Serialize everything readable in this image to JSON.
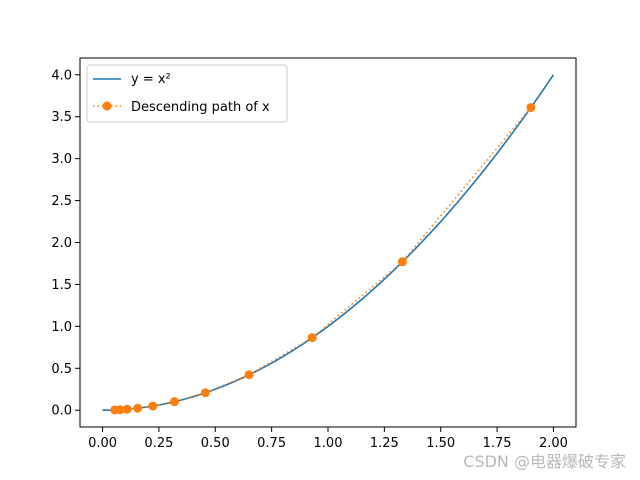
{
  "chart_data": {
    "type": "line",
    "title": "",
    "xlabel": "",
    "ylabel": "",
    "xlim": [
      -0.1,
      2.1
    ],
    "ylim": [
      -0.2,
      4.2
    ],
    "xticks": [
      "0.00",
      "0.25",
      "0.50",
      "0.75",
      "1.00",
      "1.25",
      "1.50",
      "1.75",
      "2.00"
    ],
    "yticks": [
      "0.0",
      "0.5",
      "1.0",
      "1.5",
      "2.0",
      "2.5",
      "3.0",
      "3.5",
      "4.0"
    ],
    "grid": false,
    "legend_placement": "upper-left",
    "series": [
      {
        "name": "y = x²",
        "style": "solid-line",
        "color": "#1f77b4",
        "function": "x^2",
        "x_range": [
          0,
          2
        ]
      },
      {
        "name": "Descending path of x",
        "style": "dotted-line-with-circle-markers",
        "color": "#ff7f0e",
        "x": [
          1.9,
          1.33,
          0.93,
          0.65,
          0.456,
          0.319,
          0.223,
          0.156,
          0.109,
          0.077,
          0.054
        ],
        "y": [
          3.61,
          1.77,
          0.865,
          0.423,
          0.208,
          0.102,
          0.05,
          0.024,
          0.012,
          0.006,
          0.003
        ]
      }
    ]
  },
  "watermark": "CSDN @电器爆破专家"
}
